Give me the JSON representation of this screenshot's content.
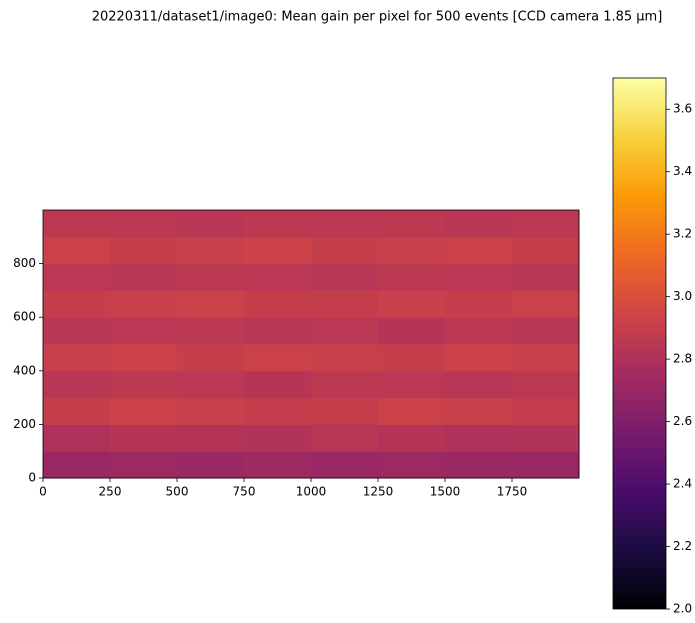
{
  "chart_data": {
    "type": "heatmap",
    "title": "20220311/dataset1/image0: Mean gain per pixel for 500 events [CCD camera 1.85 μm]",
    "xlim": [
      0,
      2000
    ],
    "xticks": [
      0,
      250,
      500,
      750,
      1000,
      1250,
      1500,
      1750
    ],
    "ylim": [
      0,
      1000
    ],
    "yticks": [
      0,
      200,
      400,
      600,
      800
    ],
    "z": [
      [
        2.7,
        2.72,
        2.71,
        2.73,
        2.7,
        2.72,
        2.71,
        2.7
      ],
      [
        2.8,
        2.83,
        2.82,
        2.81,
        2.84,
        2.82,
        2.8,
        2.81
      ],
      [
        2.9,
        2.92,
        2.91,
        2.89,
        2.9,
        2.92,
        2.91,
        2.89
      ],
      [
        2.84,
        2.86,
        2.85,
        2.83,
        2.86,
        2.85,
        2.84,
        2.86
      ],
      [
        2.91,
        2.93,
        2.9,
        2.92,
        2.91,
        2.9,
        2.93,
        2.91
      ],
      [
        2.84,
        2.85,
        2.86,
        2.84,
        2.85,
        2.83,
        2.86,
        2.84
      ],
      [
        2.9,
        2.91,
        2.92,
        2.9,
        2.89,
        2.91,
        2.9,
        2.92
      ],
      [
        2.85,
        2.84,
        2.86,
        2.85,
        2.84,
        2.86,
        2.85,
        2.84
      ],
      [
        2.92,
        2.9,
        2.91,
        2.93,
        2.9,
        2.91,
        2.92,
        2.9
      ],
      [
        2.86,
        2.85,
        2.84,
        2.86,
        2.85,
        2.86,
        2.84,
        2.85
      ]
    ],
    "colormap": [
      "#000004",
      "#1b0c41",
      "#4a0c6b",
      "#781c6d",
      "#a52c60",
      "#cf4446",
      "#ed6925",
      "#fb9b06",
      "#f7d13d",
      "#fcffa4"
    ],
    "clim": [
      2.0,
      3.7
    ],
    "cticks": [
      {
        "value": 2.0,
        "label": "2.0"
      },
      2.2,
      2.4,
      2.6,
      2.8,
      {
        "value": 3.0,
        "label": "3.0"
      },
      3.2,
      3.4,
      3.6
    ]
  }
}
